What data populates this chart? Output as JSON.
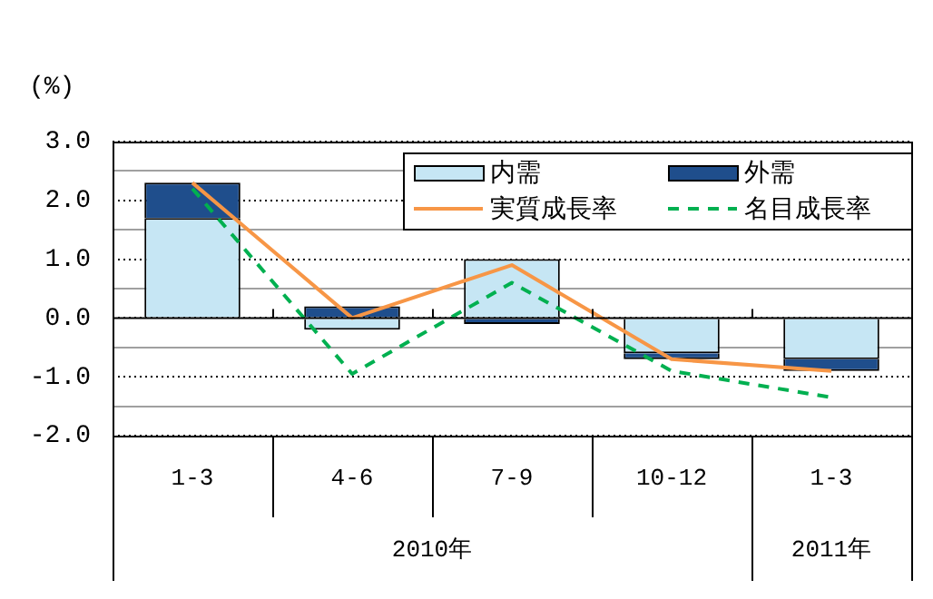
{
  "chart_data": {
    "type": "bar",
    "ylabel": "(%)",
    "categories": [
      "1-3",
      "4-6",
      "7-9",
      "10-12",
      "1-3"
    ],
    "stacked": true,
    "ylim": [
      -2,
      3
    ],
    "yticks": [
      {
        "value": -2,
        "label": "-2.0"
      },
      {
        "value": -1.5,
        "label": null
      },
      {
        "value": -1,
        "label": "-1.0"
      },
      {
        "value": -0.5,
        "label": null
      },
      {
        "value": 0,
        "label": "0.0"
      },
      {
        "value": 0.5,
        "label": null
      },
      {
        "value": 1,
        "label": "1.0"
      },
      {
        "value": 1.5,
        "label": null
      },
      {
        "value": 2,
        "label": "2.0"
      },
      {
        "value": 2.5,
        "label": null
      },
      {
        "value": 3,
        "label": "3.0"
      }
    ],
    "grid": "y",
    "legend": "top right",
    "marker": "none",
    "annotations": [
      "2010年",
      "2011年"
    ],
    "series": [
      {
        "name": "内需",
        "color": "#c6e6f4",
        "values": [
          1.7,
          -0.2,
          1.0,
          -0.6,
          -0.7
        ]
      },
      {
        "name": "外需",
        "color": "#1f4e8c",
        "values": [
          0.6,
          0.2,
          -0.1,
          -0.1,
          -0.2
        ]
      },
      {
        "name": "実質成長率",
        "type": "line",
        "color": "#f79646",
        "line_style": "solid",
        "values": [
          2.3,
          0.0,
          0.9,
          -0.7,
          -0.9
        ]
      },
      {
        "name": "名目成長率",
        "type": "line",
        "color": "#00b050",
        "line_style": "dashed",
        "values": [
          2.2,
          -0.95,
          0.6,
          -0.9,
          -1.35
        ]
      }
    ]
  }
}
